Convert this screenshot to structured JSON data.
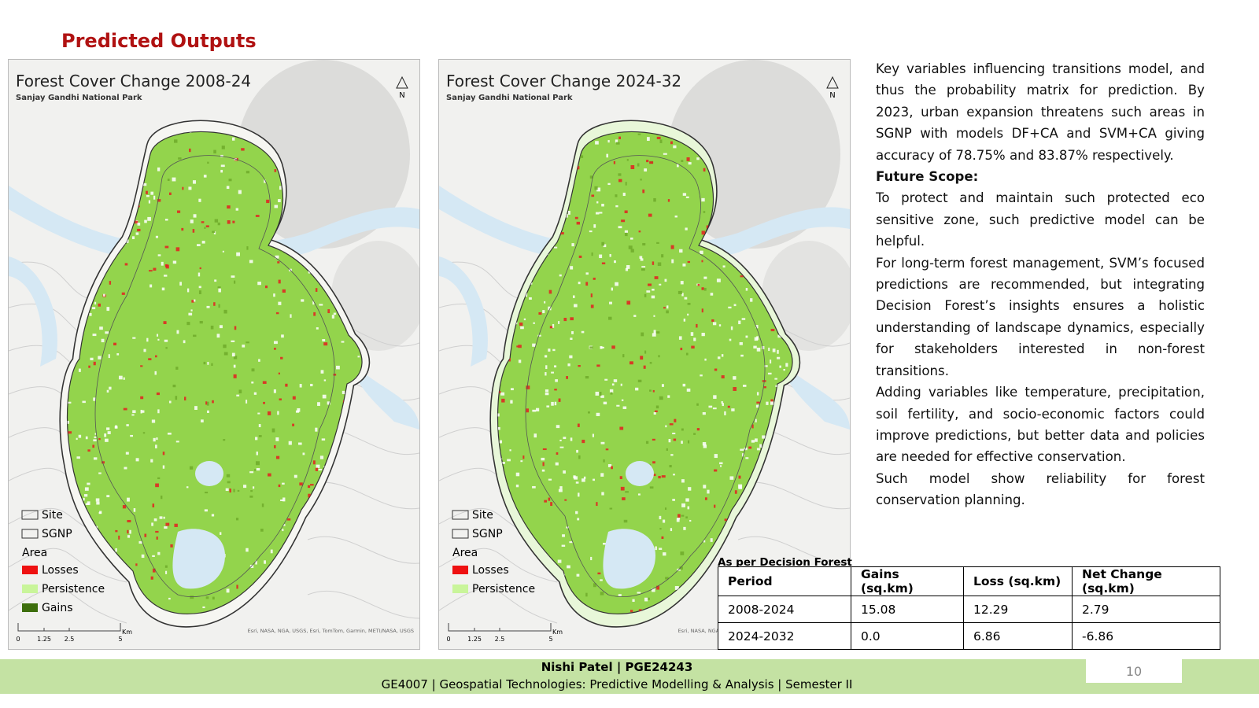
{
  "header": {
    "title": "Predicted Outputs"
  },
  "maps": [
    {
      "title": "Forest Cover Change 2008-24",
      "subtitle": "Sanjay Gandhi National Park",
      "north": "N",
      "legend": {
        "site": "Site",
        "sgnp": "SGNP",
        "area": "Area",
        "items": [
          "Losses",
          "Persistence",
          "Gains"
        ]
      },
      "scale": [
        "0",
        "1.25",
        "2.5",
        "5"
      ],
      "scale_unit": "Km",
      "attribution": "Esri, NASA, NGA, USGS, Esri, TomTom, Garmin, METI/NASA, USGS"
    },
    {
      "title": "Forest Cover Change 2024-32",
      "subtitle": "Sanjay Gandhi National Park",
      "north": "N",
      "legend": {
        "site": "Site",
        "sgnp": "SGNP",
        "area": "Area",
        "items": [
          "Losses",
          "Persistence"
        ]
      },
      "scale": [
        "0",
        "1.25",
        "2.5",
        "5"
      ],
      "scale_unit": "Km",
      "attribution": "Esri, NASA, NGA, USGS, Esri, TomTom, Garmin, METI/NASA, USGS"
    }
  ],
  "text": {
    "intro": "Key variables influencing transitions model, and thus the probability matrix for prediction. By 2023, urban expansion threatens such areas in SGNP with models DF+CA and SVM+CA giving accuracy of 78.75% and 83.87% respectively.",
    "scope_heading": "Future Scope:",
    "points": [
      "To protect and maintain such protected eco sensitive zone, such predictive model can be helpful.",
      "For long-term forest management, SVM’s focused predictions are recommended, but integrating Decision Forest’s insights ensures a holistic understanding of landscape dynamics, especially for stakeholders interested in non-forest transitions.",
      "Adding variables like temperature, precipitation, soil fertility, and socio-economic factors could improve predictions, but better data and policies are needed for effective conservation.",
      "Such model show reliability for forest conservation planning."
    ]
  },
  "table": {
    "caption": "As per Decision Forest",
    "header": [
      "Period",
      "Gains (sq.km)",
      "Loss (sq.km)",
      "Net Change (sq.km)"
    ],
    "rows": [
      [
        "2008-2024",
        "15.08",
        "12.29",
        "2.79"
      ],
      [
        "2024-2032",
        "0.0",
        "6.86",
        "-6.86"
      ]
    ]
  },
  "footer": {
    "author": "Nishi Patel | PGE24243",
    "course": "GE4007 | Geospatial Technologies: Predictive Modelling & Analysis | Semester II",
    "page": "10"
  }
}
